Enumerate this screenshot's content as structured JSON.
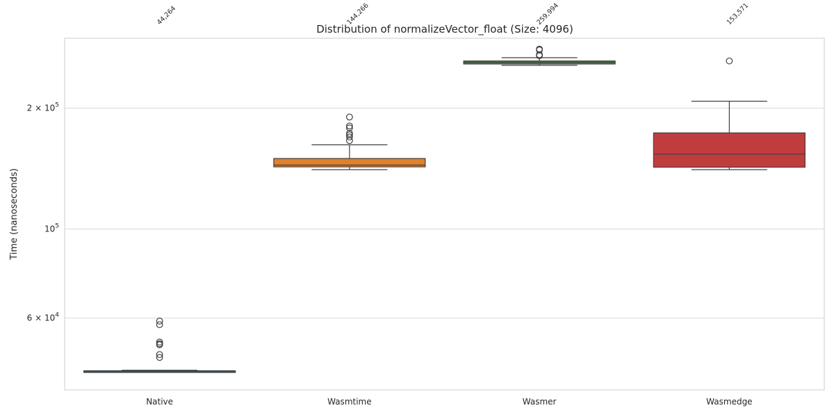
{
  "chart_data": {
    "type": "box",
    "title": "Distribution of normalizeVector_float (Size: 4096)",
    "xlabel": "",
    "ylabel": "Time (nanoseconds)",
    "yscale": "log",
    "ylim": [
      41000,
      290000
    ],
    "yticks": [
      {
        "value": 60000,
        "base": "6 × 10",
        "exp": "4"
      },
      {
        "value": 100000,
        "base": "10",
        "exp": "5"
      },
      {
        "value": 200000,
        "base": "2 × 10",
        "exp": "5"
      }
    ],
    "grid": "horizontal",
    "categories": [
      "Native",
      "Wasmtime",
      "Wasmer",
      "Wasmedge"
    ],
    "boxes": [
      {
        "category": "Native",
        "color": "#3274a1",
        "whisker_low": 44000,
        "q1": 44150,
        "median": 44264,
        "q3": 44380,
        "whisker_high": 44500,
        "outliers": [
          59000,
          57800,
          52300,
          51800,
          51500,
          48700,
          47900
        ]
      },
      {
        "category": "Wasmtime",
        "color": "#e1812c",
        "whisker_low": 140500,
        "q1": 142800,
        "median": 144266,
        "q3": 149800,
        "whisker_high": 162000,
        "outliers": [
          190000,
          180500,
          178500,
          173000,
          171500,
          169500,
          166000
        ]
      },
      {
        "category": "Wasmer",
        "color": "#3a923a",
        "whisker_low": 255500,
        "q1": 257500,
        "median": 259994,
        "q3": 262000,
        "whisker_high": 267000,
        "outliers": [
          280500,
          279000,
          271500,
          270000
        ]
      },
      {
        "category": "Wasmedge",
        "color": "#c03d3e",
        "whisker_low": 140500,
        "q1": 142500,
        "median": 153571,
        "q3": 173500,
        "whisker_high": 208000,
        "outliers": [
          262000
        ]
      }
    ],
    "median_labels": [
      "44,264",
      "144,266",
      "259,994",
      "153,571"
    ]
  }
}
